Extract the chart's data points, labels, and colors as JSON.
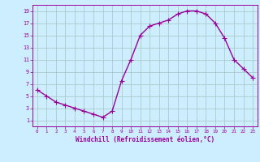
{
  "x": [
    0,
    1,
    2,
    3,
    4,
    5,
    6,
    7,
    8,
    9,
    10,
    11,
    12,
    13,
    14,
    15,
    16,
    17,
    18,
    19,
    20,
    21,
    22,
    23
  ],
  "y": [
    6,
    5,
    4,
    3.5,
    3,
    2.5,
    2,
    1.5,
    2.5,
    7.5,
    11,
    15,
    16.5,
    17,
    17.5,
    18.5,
    19,
    19,
    18.5,
    17,
    14.5,
    11,
    9.5,
    8
  ],
  "line_color": "#990099",
  "marker": "+",
  "marker_size": 4,
  "bg_color": "#cceeff",
  "grid_color": "#aacccc",
  "xlabel": "Windchill (Refroidissement éolien,°C)",
  "xlabel_color": "#990099",
  "tick_color": "#990099",
  "xlim": [
    -0.5,
    23.5
  ],
  "ylim": [
    0,
    20
  ],
  "yticks": [
    1,
    3,
    5,
    7,
    9,
    11,
    13,
    15,
    17,
    19
  ],
  "xticks": [
    0,
    1,
    2,
    3,
    4,
    5,
    6,
    7,
    8,
    9,
    10,
    11,
    12,
    13,
    14,
    15,
    16,
    17,
    18,
    19,
    20,
    21,
    22,
    23
  ],
  "linewidth": 1.0,
  "marker_linewidth": 0.8
}
